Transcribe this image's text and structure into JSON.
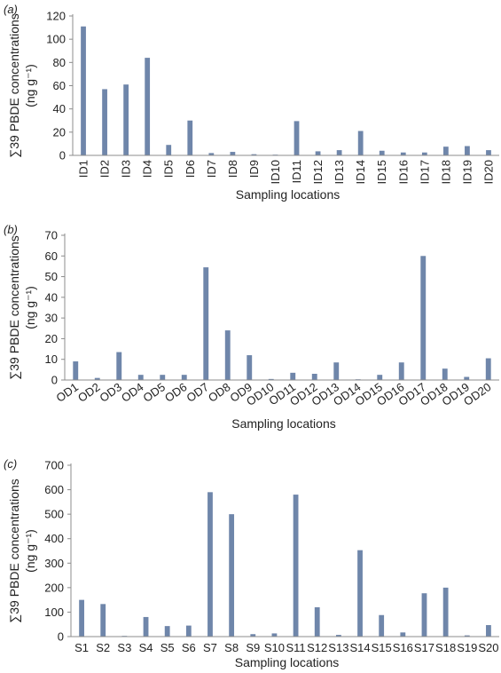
{
  "chart_data": [
    {
      "type": "bar",
      "panel_label": "(a)",
      "categories": [
        "ID1",
        "ID2",
        "ID3",
        "ID4",
        "ID5",
        "ID6",
        "ID7",
        "ID8",
        "ID9",
        "ID10",
        "ID11",
        "ID12",
        "ID13",
        "ID14",
        "ID15",
        "ID16",
        "ID17",
        "ID18",
        "ID19",
        "ID20"
      ],
      "values": [
        111,
        57,
        61,
        84,
        9,
        30,
        2,
        3,
        1,
        0.5,
        29.5,
        3.5,
        4.5,
        21,
        4,
        2.5,
        2.5,
        7.5,
        8,
        4.5
      ],
      "xlabel": "Sampling locations",
      "ylabel_line1": "∑39 PBDE concentrations",
      "ylabel_line2": "(ng g⁻¹)",
      "ylim": [
        0,
        120
      ],
      "yticks": [
        0,
        20,
        40,
        60,
        80,
        100,
        120
      ],
      "xtick_rotation": "vertical",
      "bar_color": "#6f86aa",
      "grid": false
    },
    {
      "type": "bar",
      "panel_label": "(b)",
      "categories": [
        "OD1",
        "OD2",
        "OD3",
        "OD4",
        "OD5",
        "OD6",
        "OD7",
        "OD8",
        "OD9",
        "OD10",
        "OD11",
        "OD12",
        "OD13",
        "OD14",
        "OD15",
        "OD16",
        "OD17",
        "OD18",
        "OD19",
        "OD20"
      ],
      "values": [
        9,
        1,
        13.5,
        2.5,
        2.5,
        2.5,
        54.5,
        24,
        12,
        0.5,
        3.5,
        3,
        8.5,
        0.3,
        2.5,
        8.5,
        60,
        5.5,
        1.5,
        10.5
      ],
      "xlabel": "Sampling locations",
      "ylabel_line1": "∑39 PBDE concentrations",
      "ylabel_line2": "(ng g⁻¹)",
      "ylim": [
        0,
        70
      ],
      "yticks": [
        0,
        10,
        20,
        30,
        40,
        50,
        60,
        70
      ],
      "xtick_rotation": "slanted",
      "bar_color": "#6f86aa",
      "grid": false
    },
    {
      "type": "bar",
      "panel_label": "(c)",
      "categories": [
        "S1",
        "S2",
        "S3",
        "S4",
        "S5",
        "S6",
        "S7",
        "S8",
        "S9",
        "S10",
        "S11",
        "S12",
        "S13",
        "S14",
        "S15",
        "S16",
        "S17",
        "S18",
        "S19",
        "S20"
      ],
      "values": [
        150,
        133,
        2,
        80,
        43,
        45,
        590,
        500,
        10,
        13,
        580,
        120,
        7,
        353,
        88,
        17,
        177,
        200,
        5,
        47
      ],
      "xlabel": "Sampling locations",
      "ylabel_line1": "∑39 PBDE concentrations",
      "ylabel_line2": "(ng g⁻¹)",
      "ylim": [
        0,
        700
      ],
      "yticks": [
        0,
        100,
        200,
        300,
        400,
        500,
        600,
        700
      ],
      "xtick_rotation": "horizontal",
      "bar_color": "#6f86aa",
      "grid": false
    }
  ]
}
